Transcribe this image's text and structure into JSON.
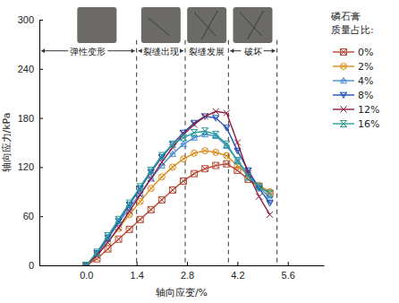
{
  "chart_data": {
    "type": "line",
    "x_label": "轴向应变/%",
    "y_label": "轴向应力/kPa",
    "legend_title": "磷石膏质量占比:",
    "legend": "right",
    "xlim": [
      -1.3,
      6.6
    ],
    "xticks": [
      {
        "value": 0,
        "label": "0.0"
      },
      1.4,
      2.8,
      4.2,
      5.6
    ],
    "ylim": [
      0,
      300
    ],
    "yticks": [
      0,
      60,
      120,
      180,
      240,
      300
    ],
    "x": [
      0,
      0.3,
      0.6,
      0.9,
      1.2,
      1.5,
      1.8,
      2.1,
      2.4,
      2.7,
      3.0,
      3.3,
      3.6,
      3.9,
      4.2,
      4.5,
      4.8,
      5.1
    ],
    "annotations": [
      {
        "text": "弹性变形",
        "x0": -1.3,
        "x1": 1.4,
        "y": 262
      },
      {
        "text": "裂缝出现",
        "x0": 1.4,
        "x1": 2.75,
        "y": 262
      },
      {
        "text": "裂缝发展",
        "x0": 2.75,
        "x1": 3.95,
        "y": 262
      },
      {
        "text": "破坏",
        "x0": 3.95,
        "x1": 5.3,
        "y": 262
      }
    ],
    "series": [
      {
        "name": "0%",
        "color": "#b84a33",
        "marker": "square_x",
        "values": [
          0,
          8,
          20,
          32,
          44,
          56,
          68,
          80,
          92,
          103,
          112,
          118,
          122,
          124,
          116,
          105,
          96,
          88
        ]
      },
      {
        "name": "2%",
        "color": "#d98c1a",
        "marker": "circle_x",
        "values": [
          0,
          12,
          28,
          45,
          62,
          78,
          94,
          108,
          120,
          130,
          137,
          140,
          138,
          134,
          122,
          110,
          98,
          90
        ]
      },
      {
        "name": "4%",
        "color": "#4a8fd6",
        "marker": "triangle_x",
        "values": [
          0,
          14,
          32,
          52,
          70,
          88,
          106,
          122,
          136,
          148,
          156,
          160,
          158,
          146,
          128,
          112,
          96,
          82
        ]
      },
      {
        "name": "8%",
        "color": "#1f4fb0",
        "marker": "triangle_down_x",
        "values": [
          0,
          15,
          34,
          54,
          74,
          94,
          114,
          132,
          148,
          162,
          174,
          182,
          180,
          168,
          140,
          116,
          94,
          76
        ]
      },
      {
        "name": "12%",
        "color": "#8e1b3e",
        "marker": "x",
        "values": [
          0,
          12,
          28,
          46,
          66,
          86,
          106,
          126,
          144,
          160,
          172,
          182,
          188,
          186,
          150,
          112,
          84,
          62
        ]
      },
      {
        "name": "16%",
        "color": "#2a9d9a",
        "marker": "bowtie",
        "values": [
          0,
          16,
          36,
          56,
          76,
          96,
          116,
          134,
          148,
          156,
          162,
          164,
          160,
          148,
          128,
          108,
          96,
          88
        ]
      }
    ]
  }
}
